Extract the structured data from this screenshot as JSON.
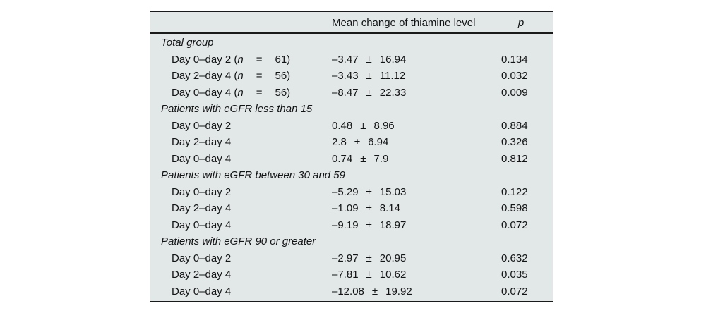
{
  "page": {
    "background": "#ffffff"
  },
  "table": {
    "background": "#e2e7e8",
    "rule_color": "#1a1a1a",
    "pm": "±",
    "header": {
      "value_col": "Mean change of thiamine level",
      "p_col": "p"
    },
    "sections": [
      {
        "title": "Total group",
        "rows": [
          {
            "label": "Day 0–day 2 (",
            "nvar": "n",
            "eq": "=",
            "nval": "61)",
            "mean": "–3.47",
            "sd": "16.94",
            "p": "0.134"
          },
          {
            "label": "Day 2–day 4 (",
            "nvar": "n",
            "eq": "=",
            "nval": "56)",
            "mean": "–3.43",
            "sd": "11.12",
            "p": "0.032"
          },
          {
            "label": "Day 0–day 4 (",
            "nvar": "n",
            "eq": "=",
            "nval": "56)",
            "mean": "–8.47",
            "sd": "22.33",
            "p": "0.009"
          }
        ]
      },
      {
        "title": "Patients with eGFR less than 15",
        "rows": [
          {
            "label": "Day 0–day 2",
            "mean": "0.48",
            "sd": "8.96",
            "p": "0.884"
          },
          {
            "label": "Day 2–day 4",
            "mean": "2.8",
            "sd": "6.94",
            "p": "0.326"
          },
          {
            "label": "Day 0–day 4",
            "mean": "0.74",
            "sd": "7.9",
            "p": "0.812"
          }
        ]
      },
      {
        "title": "Patients with eGFR between 30 and 59",
        "rows": [
          {
            "label": "Day 0–day 2",
            "mean": "–5.29",
            "sd": "15.03",
            "p": "0.122"
          },
          {
            "label": "Day 2–day 4",
            "mean": "–1.09",
            "sd": "8.14",
            "p": "0.598"
          },
          {
            "label": "Day 0–day 4",
            "mean": "–9.19",
            "sd": "18.97",
            "p": "0.072"
          }
        ]
      },
      {
        "title": "Patients with eGFR 90 or greater",
        "rows": [
          {
            "label": "Day 0–day 2",
            "mean": "–2.97",
            "sd": "20.95",
            "p": "0.632"
          },
          {
            "label": "Day 2–day 4",
            "mean": "–7.81",
            "sd": "10.62",
            "p": "0.035"
          },
          {
            "label": "Day 0–day 4",
            "mean": "–12.08",
            "sd": "19.92",
            "p": "0.072"
          }
        ]
      }
    ]
  }
}
